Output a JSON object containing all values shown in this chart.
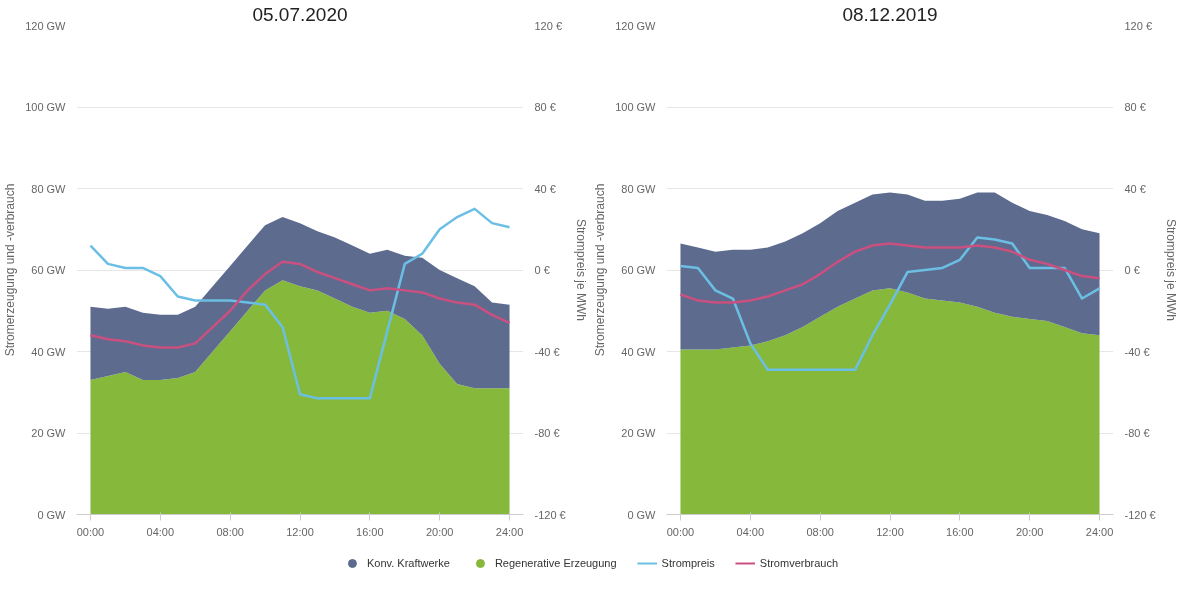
{
  "chart_data": [
    {
      "type": "area",
      "title": "05.07.2020",
      "ylabel": "Stromerzeugung und -verbrauch",
      "y2label": "Strompreis je MWh",
      "stacked": true,
      "grid": "y",
      "legend": "bottom",
      "x": [
        0,
        1,
        2,
        3,
        4,
        5,
        6,
        7,
        8,
        9,
        10,
        11,
        12,
        13,
        14,
        15,
        16,
        17,
        18,
        19,
        20,
        21,
        22,
        23,
        24
      ],
      "xlim": [
        -0.8,
        24.8
      ],
      "xticks": [
        {
          "value": 0,
          "label": "00:00"
        },
        {
          "value": 4,
          "label": "04:00"
        },
        {
          "value": 8,
          "label": "08:00"
        },
        {
          "value": 12,
          "label": "12:00"
        },
        {
          "value": 16,
          "label": "16:00"
        },
        {
          "value": 20,
          "label": "20:00"
        },
        {
          "value": 24,
          "label": "24:00"
        }
      ],
      "ylim": [
        0,
        120
      ],
      "yticks": [
        {
          "value": 0,
          "label": "0 GW"
        },
        {
          "value": 20,
          "label": "20 GW"
        },
        {
          "value": 40,
          "label": "40 GW"
        },
        {
          "value": 60,
          "label": "60 GW"
        },
        {
          "value": 80,
          "label": "80 GW"
        },
        {
          "value": 100,
          "label": "100 GW"
        },
        {
          "value": 120,
          "label": "120 GW"
        }
      ],
      "y2lim": [
        -120,
        120
      ],
      "y2ticks": [
        {
          "value": -120,
          "label": "-120 €"
        },
        {
          "value": -80,
          "label": "-80 €"
        },
        {
          "value": -40,
          "label": "-40 €"
        },
        {
          "value": 0,
          "label": "0 €"
        },
        {
          "value": 40,
          "label": "40 €"
        },
        {
          "value": 80,
          "label": "80 €"
        },
        {
          "value": 120,
          "label": "120 €"
        }
      ],
      "series": [
        {
          "name": "Regenerative Erzeugung",
          "color": "#86b83b",
          "values": [
            33,
            34,
            35,
            33,
            33,
            33.5,
            35,
            40,
            45,
            50,
            55,
            57.5,
            56,
            55,
            53,
            51,
            49.5,
            50,
            48,
            44,
            37,
            32,
            31,
            31,
            31
          ]
        },
        {
          "name": "Konv. Kraftwerke",
          "color": "#5d6b8f",
          "values": [
            18,
            16.5,
            16,
            16.5,
            16,
            15.5,
            16,
            16,
            16,
            16,
            16,
            15.5,
            15.5,
            14.5,
            15,
            15,
            14.5,
            15,
            15.5,
            19,
            23,
            26,
            25,
            21,
            20.5
          ]
        },
        {
          "name": "Strompreis",
          "type": "line",
          "axis": "y2",
          "color": "#6cbfe4",
          "values": [
            12,
            3,
            1,
            1,
            -3,
            -13,
            -15,
            -15,
            -15,
            -16,
            -17,
            -28,
            -61,
            -63,
            -63,
            -63,
            -63,
            -30,
            3,
            8,
            20,
            26,
            30,
            23,
            21
          ]
        },
        {
          "name": "Stromverbrauch",
          "type": "line",
          "color": "#c9507f",
          "values": [
            44,
            43,
            42.5,
            41.5,
            41,
            41,
            42,
            46,
            50,
            55,
            59,
            62,
            61.5,
            59.5,
            58,
            56.5,
            55,
            55.5,
            55,
            54.5,
            53,
            52,
            51.5,
            49,
            47
          ]
        }
      ]
    },
    {
      "type": "area",
      "title": "08.12.2019",
      "ylabel": "Stromerzeugung und -verbrauch",
      "y2label": "Strompreis je MWh",
      "stacked": true,
      "grid": "y",
      "x": [
        0,
        1,
        2,
        3,
        4,
        5,
        6,
        7,
        8,
        9,
        10,
        11,
        12,
        13,
        14,
        15,
        16,
        17,
        18,
        19,
        20,
        21,
        22,
        23,
        24
      ],
      "xlim": [
        -0.8,
        24.8
      ],
      "xticks": [
        {
          "value": 0,
          "label": "00:00"
        },
        {
          "value": 4,
          "label": "04:00"
        },
        {
          "value": 8,
          "label": "08:00"
        },
        {
          "value": 12,
          "label": "12:00"
        },
        {
          "value": 16,
          "label": "16:00"
        },
        {
          "value": 20,
          "label": "20:00"
        },
        {
          "value": 24,
          "label": "24:00"
        }
      ],
      "ylim": [
        0,
        120
      ],
      "yticks": [
        {
          "value": 0,
          "label": "0 GW"
        },
        {
          "value": 20,
          "label": "20 GW"
        },
        {
          "value": 40,
          "label": "40 GW"
        },
        {
          "value": 60,
          "label": "60 GW"
        },
        {
          "value": 80,
          "label": "80 GW"
        },
        {
          "value": 100,
          "label": "100 GW"
        },
        {
          "value": 120,
          "label": "120 GW"
        }
      ],
      "y2lim": [
        -120,
        120
      ],
      "y2ticks": [
        {
          "value": -120,
          "label": "-120 €"
        },
        {
          "value": -80,
          "label": "-80 €"
        },
        {
          "value": -40,
          "label": "-40 €"
        },
        {
          "value": 0,
          "label": "0 €"
        },
        {
          "value": 40,
          "label": "40 €"
        },
        {
          "value": 80,
          "label": "80 €"
        },
        {
          "value": 120,
          "label": "120 €"
        }
      ],
      "series": [
        {
          "color": "#86b83b",
          "values": [
            40.5,
            40.5,
            40.5,
            41,
            41.5,
            42.5,
            44,
            46,
            48.5,
            51,
            53,
            55,
            55.5,
            54.5,
            53,
            52.5,
            52,
            51,
            49.5,
            48.5,
            48,
            47.5,
            46,
            44.5,
            44
          ]
        },
        {
          "color": "#5d6b8f",
          "values": [
            26,
            25,
            24,
            24,
            23.5,
            23,
            23,
            23,
            23,
            23.5,
            23.5,
            23.5,
            23.5,
            24,
            24,
            24.5,
            25.5,
            28,
            29.5,
            28,
            26.5,
            26,
            26,
            25.5,
            25
          ]
        },
        {
          "type": "line",
          "axis": "y2",
          "color": "#6cbfe4",
          "values": [
            2,
            1,
            -10,
            -14,
            -36,
            -49,
            -49,
            -49,
            -49,
            -49,
            -49,
            -32,
            -17,
            -1,
            0,
            1,
            5,
            16,
            15,
            13,
            1,
            1,
            1,
            -14,
            -9
          ]
        },
        {
          "type": "line",
          "color": "#c9507f",
          "values": [
            54,
            52.5,
            52,
            52,
            52.5,
            53.5,
            55,
            56.5,
            59,
            62,
            64.5,
            66,
            66.5,
            66,
            65.5,
            65.5,
            65.5,
            66,
            65.5,
            64.5,
            62.5,
            61.5,
            60,
            58.5,
            58
          ]
        }
      ]
    }
  ]
}
